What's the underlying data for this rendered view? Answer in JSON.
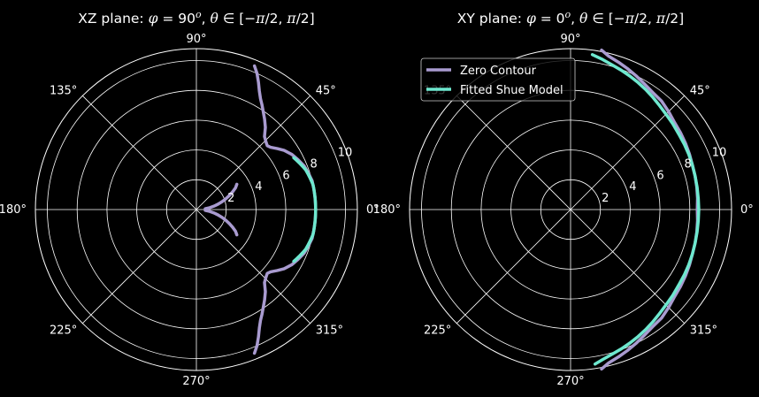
{
  "colors": {
    "background": "#000000",
    "grid": "#ffffff",
    "zero_contour": "#a99bd0",
    "fitted_shue": "#6ee8cf"
  },
  "chart_data": [
    {
      "type": "polar-line",
      "title_parts": [
        {
          "t": "XZ plane: ",
          "i": false
        },
        {
          "t": "φ",
          "i": true
        },
        {
          "t": " = 90",
          "i": false
        },
        {
          "t": "o",
          "i": true,
          "sup": true
        },
        {
          "t": ", ",
          "i": false
        },
        {
          "t": "θ",
          "i": true
        },
        {
          "t": " ∈ [−",
          "i": false
        },
        {
          "t": "π",
          "i": true
        },
        {
          "t": "/2, ",
          "i": false
        },
        {
          "t": "π",
          "i": true
        },
        {
          "t": "/2]",
          "i": false
        }
      ],
      "rlim": [
        0,
        10.8
      ],
      "radial_ticks": [
        2,
        4,
        6,
        8,
        10
      ],
      "radial_tick_labels": [
        "2",
        "4",
        "6",
        "8",
        "10"
      ],
      "angle_tick_labels": [
        "0°",
        "45°",
        "90°",
        "135°",
        "180°",
        "225°",
        "270°",
        "315°"
      ],
      "grid": true,
      "legend": null,
      "series": [
        {
          "name": "Zero Contour",
          "color": "#a99bd0",
          "theta_deg": [
            68,
            66,
            64,
            62,
            60,
            58,
            56,
            53,
            50,
            47,
            44,
            42,
            40,
            37,
            34,
            30,
            26,
            22,
            18,
            14,
            10,
            6,
            3,
            0,
            -3,
            -6,
            -10,
            -14,
            -18,
            -22,
            -26,
            -30,
            -34,
            -37,
            -40,
            -42,
            -44,
            -47,
            -50,
            -53,
            -56,
            -58,
            -60,
            -62,
            -64,
            -66,
            -68
          ],
          "r": [
            10.4,
            10.0,
            9.5,
            9.0,
            8.6,
            8.3,
            8.0,
            7.6,
            7.2,
            6.7,
            6.5,
            6.4,
            6.5,
            6.8,
            7.1,
            7.4,
            7.6,
            7.8,
            7.9,
            8.0,
            8.0,
            8.0,
            8.0,
            8.0,
            8.0,
            8.0,
            8.0,
            8.0,
            7.9,
            7.8,
            7.6,
            7.4,
            7.1,
            6.8,
            6.5,
            6.4,
            6.5,
            6.7,
            7.2,
            7.6,
            8.0,
            8.3,
            8.6,
            9.0,
            9.5,
            10.0,
            10.4
          ]
        },
        {
          "name": "Zero Contour (inner)",
          "color": "#a99bd0",
          "theta_deg": [
            5,
            8,
            11,
            14,
            17,
            20,
            23,
            26,
            29,
            32
          ],
          "r": [
            0.6,
            0.9,
            1.2,
            1.5,
            1.8,
            2.1,
            2.4,
            2.7,
            3.0,
            3.2
          ],
          "mirror": true
        },
        {
          "name": "Fitted Shue Model",
          "color": "#6ee8cf",
          "theta_deg": [
            28,
            26,
            24,
            22,
            20,
            18,
            16,
            14,
            12,
            10,
            8,
            6,
            4,
            2,
            0,
            -2,
            -4,
            -6,
            -8,
            -10,
            -12,
            -14,
            -16,
            -18,
            -20,
            -22,
            -24,
            -26,
            -28
          ],
          "r": [
            7.4,
            7.5,
            7.6,
            7.7,
            7.8,
            7.85,
            7.9,
            7.95,
            8.0,
            8.0,
            8.0,
            8.0,
            8.0,
            8.0,
            8.0,
            8.0,
            8.0,
            8.0,
            8.0,
            8.0,
            8.0,
            7.95,
            7.9,
            7.85,
            7.8,
            7.7,
            7.6,
            7.5,
            7.4
          ]
        }
      ]
    },
    {
      "type": "polar-line",
      "title_parts": [
        {
          "t": "XY plane: ",
          "i": false
        },
        {
          "t": "φ",
          "i": true
        },
        {
          "t": " = 0",
          "i": false
        },
        {
          "t": "o",
          "i": true,
          "sup": true
        },
        {
          "t": ", ",
          "i": false
        },
        {
          "t": "θ",
          "i": true
        },
        {
          "t": " ∈ [−",
          "i": false
        },
        {
          "t": "π",
          "i": true
        },
        {
          "t": "/2, ",
          "i": false
        },
        {
          "t": "π",
          "i": true
        },
        {
          "t": "/2]",
          "i": false
        }
      ],
      "rlim": [
        0,
        10.8
      ],
      "radial_ticks": [
        2,
        4,
        6,
        8,
        10
      ],
      "radial_tick_labels": [
        "2",
        "4",
        "6",
        "8",
        "10"
      ],
      "angle_tick_labels": [
        "0°",
        "45°",
        "90°",
        "135°",
        "180°",
        "225°",
        "270°",
        "315°"
      ],
      "grid": true,
      "legend": {
        "placement": "upper-left",
        "entries": [
          {
            "label": "Zero Contour",
            "color": "#a99bd0"
          },
          {
            "label": "Fitted Shue Model",
            "color": "#6ee8cf"
          }
        ]
      },
      "series": [
        {
          "name": "Zero Contour",
          "color": "#a99bd0",
          "theta_deg": [
            79,
            76,
            72,
            68,
            64,
            60,
            55,
            50,
            45,
            40,
            35,
            30,
            25,
            20,
            15,
            10,
            5,
            0,
            -5,
            -10,
            -15,
            -20,
            -25,
            -30,
            -35,
            -40,
            -45,
            -50,
            -55,
            -60,
            -64,
            -68,
            -72,
            -76,
            -79
          ],
          "r": [
            10.9,
            10.6,
            10.4,
            10.2,
            10.0,
            9.8,
            9.6,
            9.5,
            9.3,
            9.1,
            9.0,
            8.9,
            8.8,
            8.7,
            8.65,
            8.6,
            8.55,
            8.5,
            8.55,
            8.6,
            8.65,
            8.7,
            8.8,
            8.9,
            9.0,
            9.1,
            9.3,
            9.5,
            9.6,
            9.8,
            10.0,
            10.2,
            10.4,
            10.6,
            10.9
          ]
        },
        {
          "name": "Fitted Shue Model",
          "color": "#6ee8cf",
          "theta_deg": [
            82,
            78,
            74,
            70,
            66,
            62,
            58,
            54,
            50,
            45,
            40,
            35,
            30,
            25,
            20,
            15,
            10,
            5,
            0,
            -5,
            -10,
            -15,
            -20,
            -25,
            -30,
            -35,
            -40,
            -45,
            -50,
            -54,
            -58,
            -62,
            -66,
            -70,
            -74,
            -78,
            -81
          ],
          "r": [
            10.5,
            10.3,
            10.1,
            9.95,
            9.8,
            9.65,
            9.5,
            9.35,
            9.2,
            9.05,
            8.95,
            8.85,
            8.8,
            8.75,
            8.7,
            8.65,
            8.62,
            8.6,
            8.6,
            8.6,
            8.62,
            8.65,
            8.7,
            8.75,
            8.8,
            8.85,
            8.95,
            9.05,
            9.2,
            9.35,
            9.5,
            9.65,
            9.8,
            9.95,
            10.1,
            10.3,
            10.5
          ]
        }
      ]
    }
  ]
}
